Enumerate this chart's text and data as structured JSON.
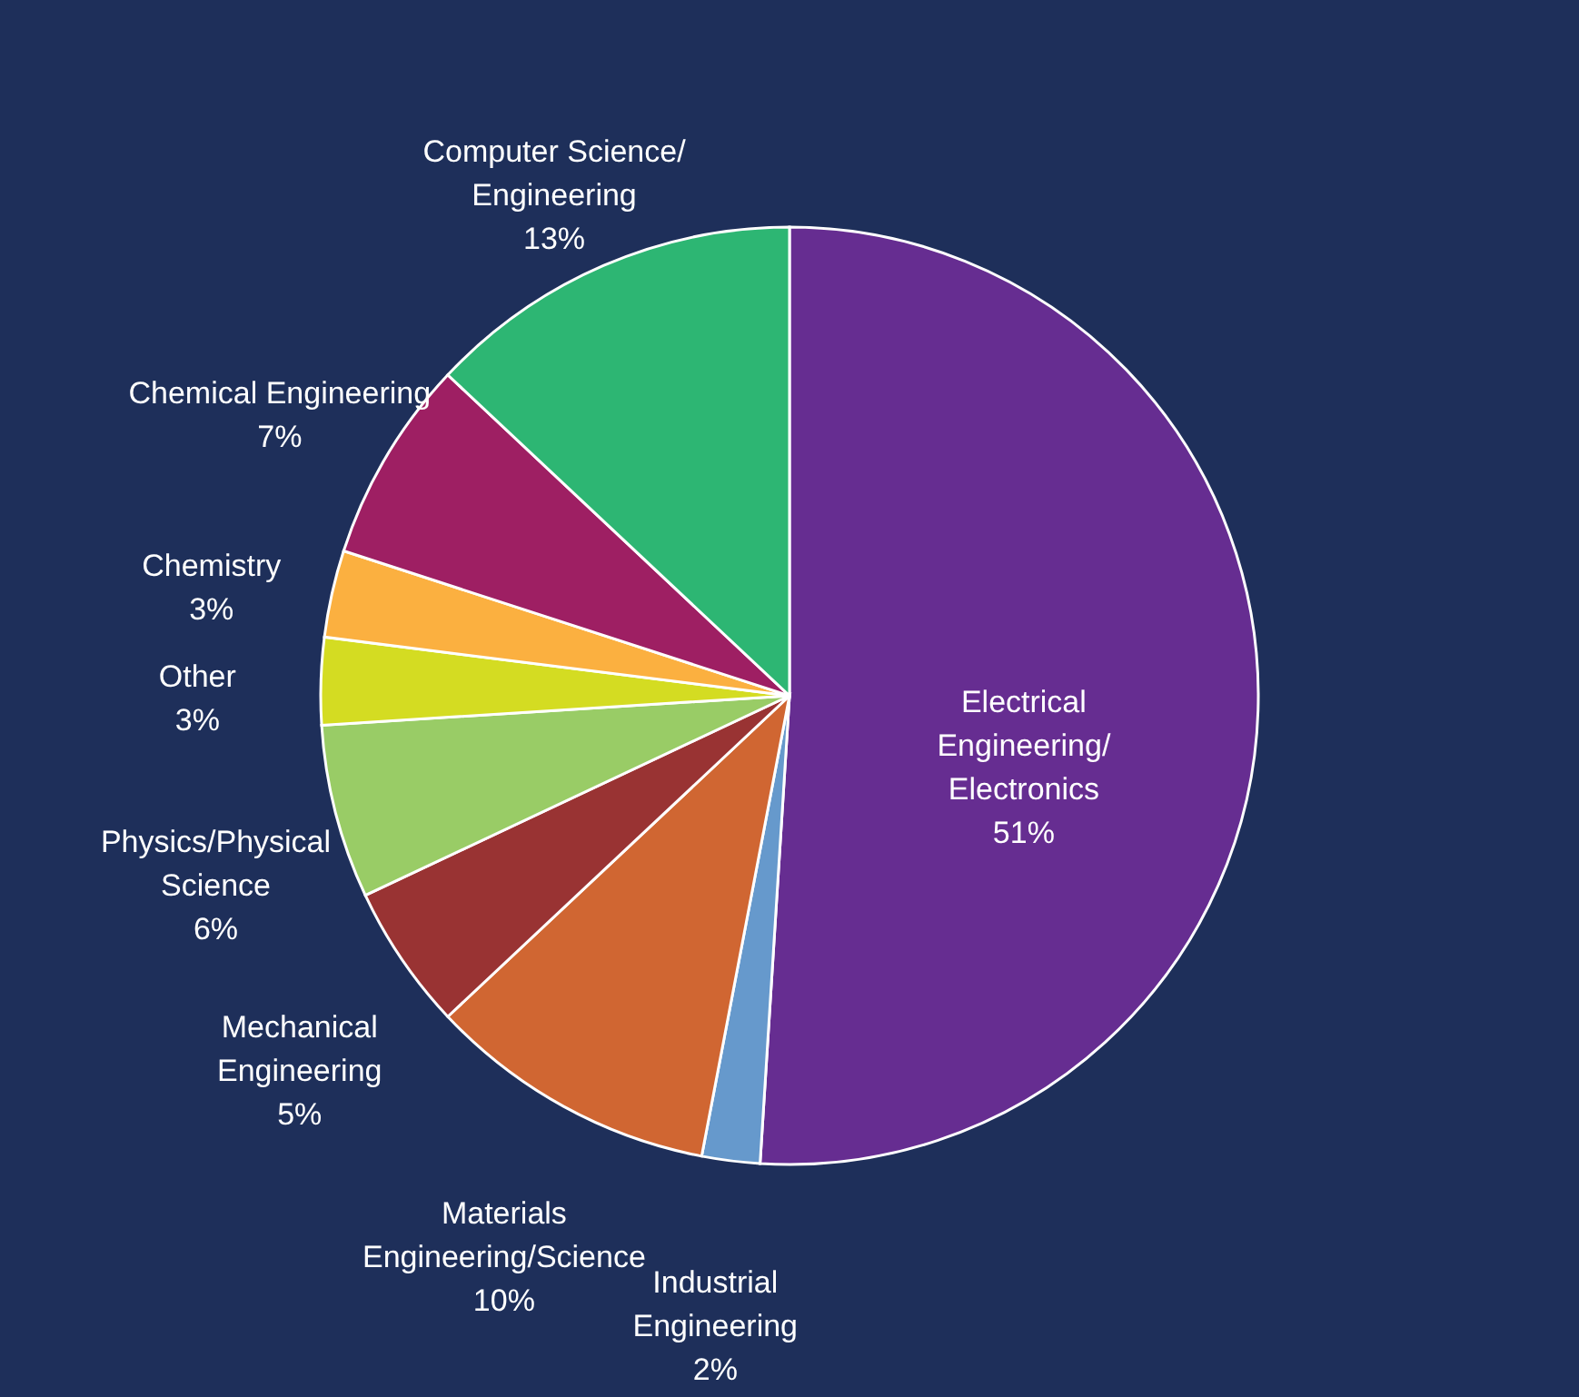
{
  "chart_data": {
    "type": "pie",
    "categories": [
      "Electrical Engineering/Electronics",
      "Industrial Engineering",
      "Materials Engineering/Science",
      "Mechanical Engineering",
      "Physics/Physical Science",
      "Other",
      "Chemistry",
      "Chemical Engineering",
      "Computer Science/Engineering"
    ],
    "values": [
      51,
      2,
      10,
      5,
      6,
      3,
      3,
      7,
      13
    ],
    "value_labels": [
      "51%",
      "2%",
      "10%",
      "5%",
      "6%",
      "3%",
      "3%",
      "7%",
      "13%"
    ],
    "colors": [
      "#662d91",
      "#6699cc",
      "#d06632",
      "#993333",
      "#99cc66",
      "#d4dc22",
      "#fbb040",
      "#9e1f63",
      "#2db673"
    ]
  }
}
